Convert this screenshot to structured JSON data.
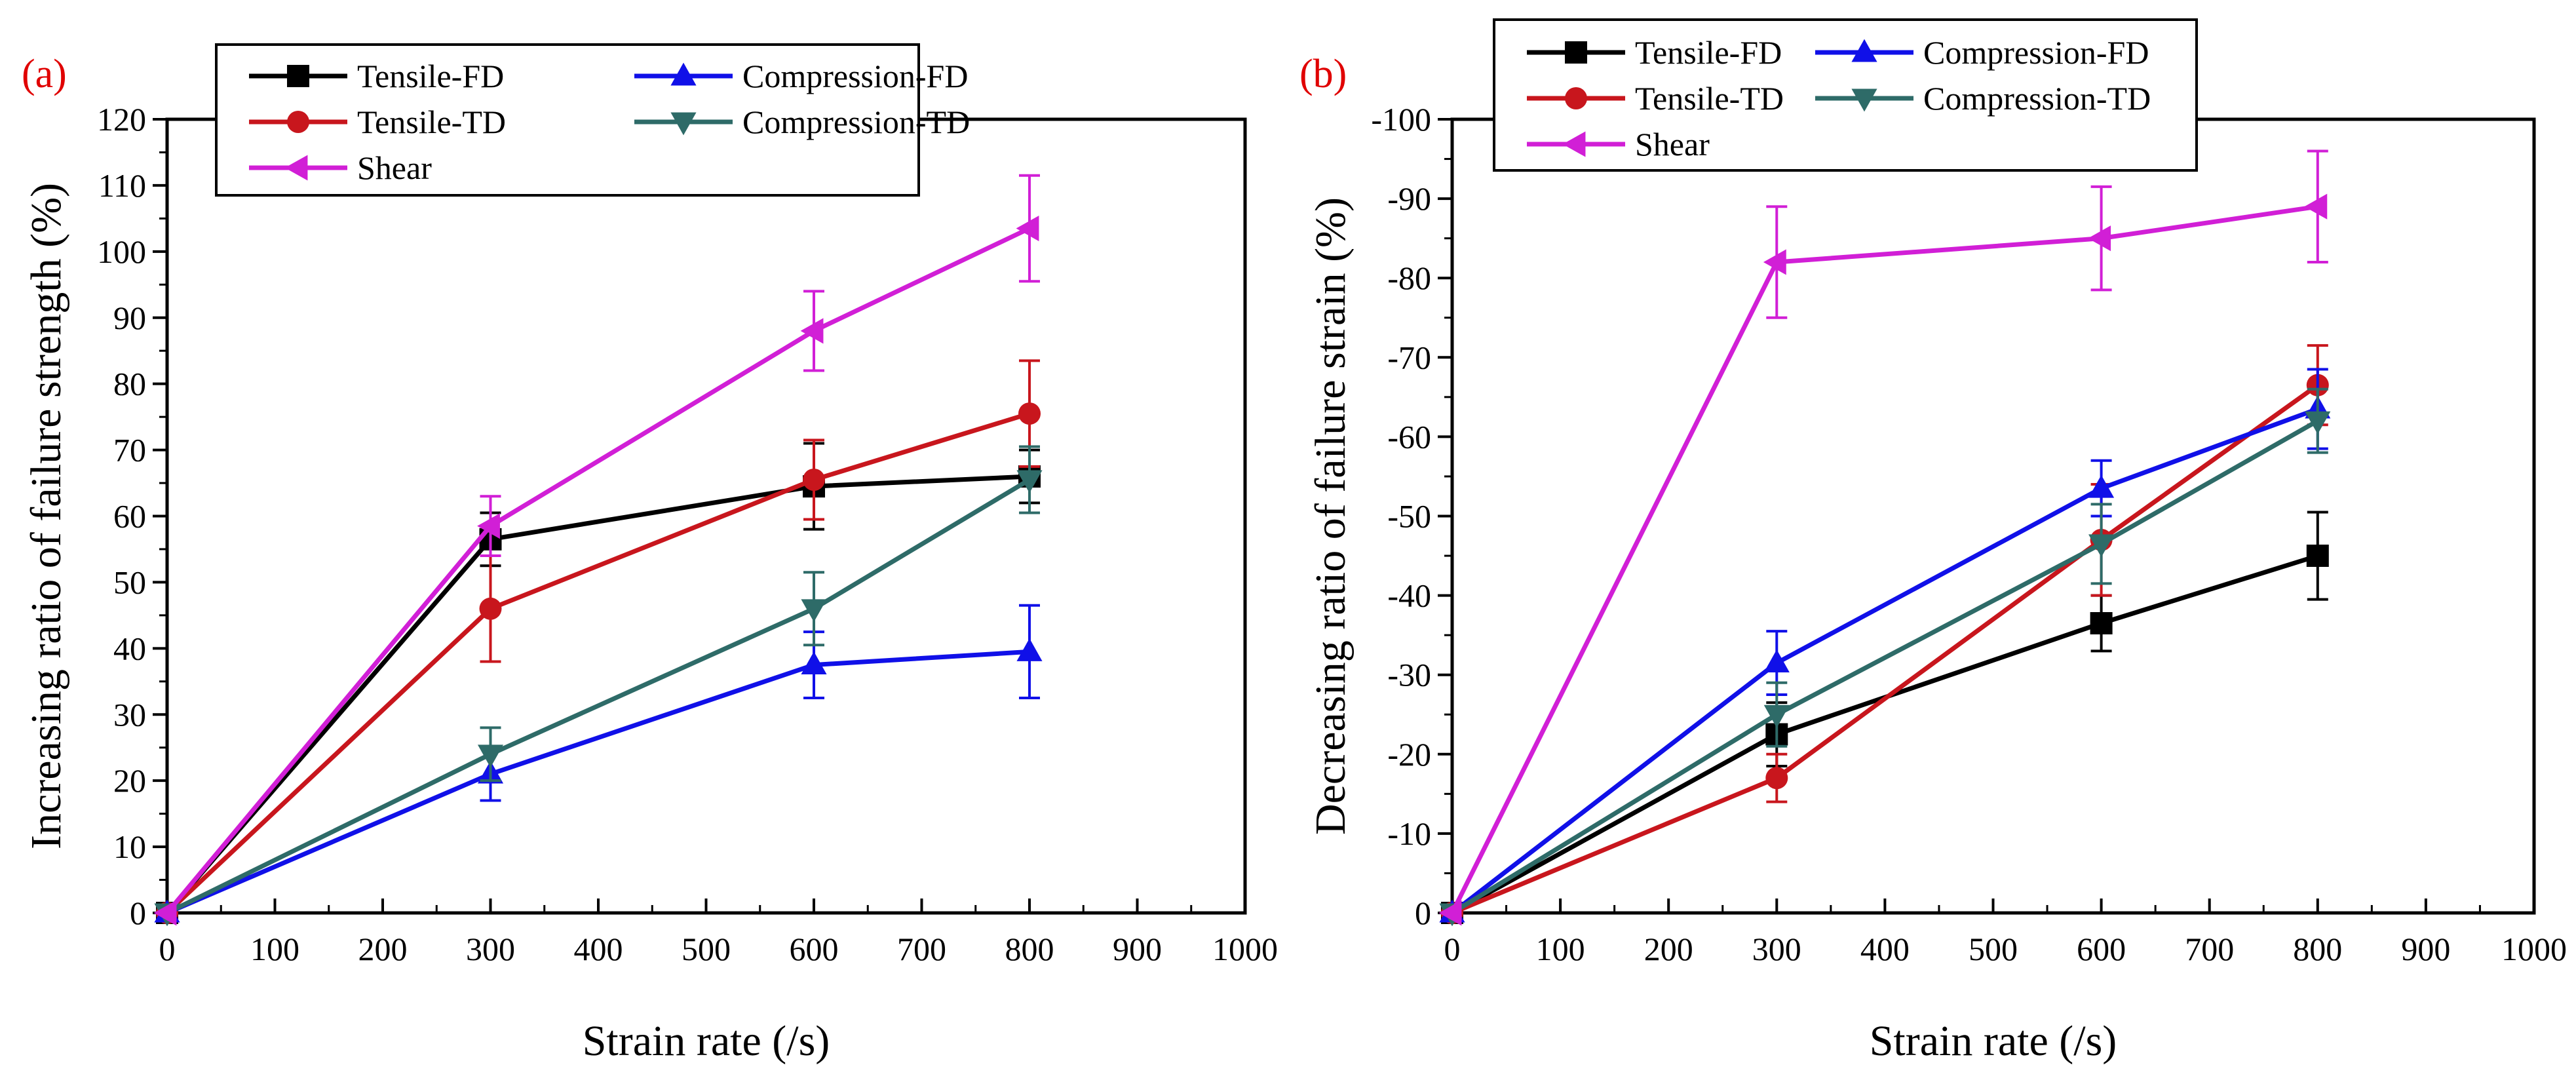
{
  "colors": {
    "tensile_fd": "#000000",
    "tensile_td": "#c8161d",
    "compression_fd": "#1010e8",
    "compression_td": "#2e6b68",
    "shear": "#d11fd6",
    "panel_label": "#e00000"
  },
  "chart_data": [
    {
      "type": "line",
      "panel_label": "(a)",
      "xlabel": "Strain rate (/s)",
      "ylabel": "Increasing ratio of failure strength (%)",
      "xlim": [
        0,
        1000
      ],
      "ylim": [
        0,
        120
      ],
      "xticks": [
        "0",
        "100",
        "200",
        "300",
        "400",
        "500",
        "600",
        "700",
        "800",
        "900",
        "1000"
      ],
      "yticks": [
        "0",
        "10",
        "20",
        "30",
        "40",
        "50",
        "60",
        "70",
        "80",
        "90",
        "100",
        "110",
        "120"
      ],
      "legend": [
        "Tensile-FD",
        "Compression-FD",
        "Tensile-TD",
        "Compression-TD",
        "Shear"
      ],
      "series": [
        {
          "name": "Tensile-FD",
          "marker": "square",
          "x": [
            0,
            300,
            600,
            800
          ],
          "y": [
            0,
            56.5,
            64.5,
            66
          ],
          "err": [
            0,
            4,
            6.5,
            4
          ]
        },
        {
          "name": "Tensile-TD",
          "marker": "circle",
          "x": [
            0,
            300,
            600,
            800
          ],
          "y": [
            0,
            46,
            65.5,
            75.5
          ],
          "err": [
            0,
            8,
            6,
            8
          ]
        },
        {
          "name": "Compression-FD",
          "marker": "triangle-up",
          "x": [
            0,
            300,
            600,
            800
          ],
          "y": [
            0,
            21,
            37.5,
            39.5
          ],
          "err": [
            0,
            4,
            5,
            7
          ]
        },
        {
          "name": "Compression-TD",
          "marker": "triangle-down",
          "x": [
            0,
            300,
            600,
            800
          ],
          "y": [
            0,
            24,
            46,
            65.5
          ],
          "err": [
            0,
            4,
            5.5,
            5
          ]
        },
        {
          "name": "Shear",
          "marker": "triangle-left",
          "x": [
            0,
            300,
            600,
            800
          ],
          "y": [
            0,
            58.5,
            88,
            103.5
          ],
          "err": [
            0,
            4.5,
            6,
            8
          ]
        }
      ]
    },
    {
      "type": "line",
      "panel_label": "(b)",
      "xlabel": "Strain rate (/s)",
      "ylabel": "Decreasing ratio of failure strain (%)",
      "xlim": [
        0,
        1000
      ],
      "ylim": [
        0,
        -100
      ],
      "xticks": [
        "0",
        "100",
        "200",
        "300",
        "400",
        "500",
        "600",
        "700",
        "800",
        "900",
        "1000"
      ],
      "yticks": [
        "0",
        "-10",
        "-20",
        "-30",
        "-40",
        "-50",
        "-60",
        "-70",
        "-80",
        "-90",
        "-100"
      ],
      "legend": [
        "Tensile-FD",
        "Compression-FD",
        "Tensile-TD",
        "Compression-TD",
        "Shear"
      ],
      "series": [
        {
          "name": "Tensile-FD",
          "marker": "square",
          "x": [
            0,
            300,
            600,
            800
          ],
          "y": [
            0,
            -22.5,
            -36.5,
            -45
          ],
          "err": [
            0,
            4,
            3.5,
            5.5
          ]
        },
        {
          "name": "Tensile-TD",
          "marker": "circle",
          "x": [
            0,
            300,
            600,
            800
          ],
          "y": [
            0,
            -17,
            -47,
            -66.5
          ],
          "err": [
            0,
            3,
            7,
            5
          ]
        },
        {
          "name": "Compression-FD",
          "marker": "triangle-up",
          "x": [
            0,
            300,
            600,
            800
          ],
          "y": [
            0,
            -31.5,
            -53.5,
            -63.5
          ],
          "err": [
            0,
            4,
            3.5,
            5
          ]
        },
        {
          "name": "Compression-TD",
          "marker": "triangle-down",
          "x": [
            0,
            300,
            600,
            800
          ],
          "y": [
            0,
            -25,
            -46.5,
            -62
          ],
          "err": [
            0,
            4,
            5,
            4
          ]
        },
        {
          "name": "Shear",
          "marker": "triangle-left",
          "x": [
            0,
            300,
            600,
            800
          ],
          "y": [
            0,
            -82,
            -85,
            -89
          ],
          "err": [
            0,
            7,
            6.5,
            7
          ]
        }
      ]
    }
  ]
}
